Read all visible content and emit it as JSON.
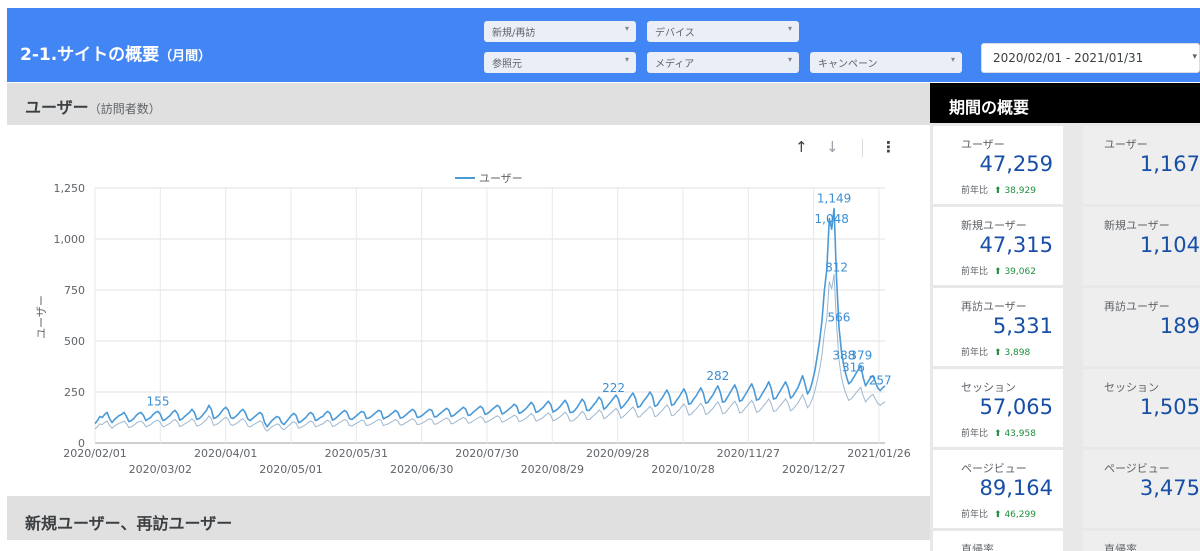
{
  "header": {
    "title": "2-1.サイトの概要",
    "title_suffix": "（月間）",
    "filters_row1": [
      {
        "label": "新規/再訪"
      },
      {
        "label": "デバイス"
      }
    ],
    "filters_row2": [
      {
        "label": "参照元"
      },
      {
        "label": "メディア"
      },
      {
        "label": "キャンペーン"
      }
    ],
    "date_range": "2020/02/01 - 2021/01/31"
  },
  "section1": {
    "title": "ユーザー",
    "subtitle": "（訪問者数）"
  },
  "section2": {
    "title": "新規ユーザー、再訪ユーザー"
  },
  "toolbar": {
    "up": "↑",
    "down": "↓",
    "more": "⋮"
  },
  "summary": {
    "title": "期間の概要",
    "yoy_label": "前年比",
    "cards_left": [
      {
        "label": "ユーザー",
        "value": "47,259",
        "yoy": "38,929"
      },
      {
        "label": "新規ユーザー",
        "value": "47,315",
        "yoy": "39,062"
      },
      {
        "label": "再訪ユーザー",
        "value": "5,331",
        "yoy": "3,898"
      },
      {
        "label": "セッション",
        "value": "57,065",
        "yoy": "43,958"
      },
      {
        "label": "ページビュー",
        "value": "89,164",
        "yoy": "46,299"
      },
      {
        "label": "直帰率"
      }
    ],
    "cards_right": [
      {
        "label": "ユーザー",
        "value": "1,167"
      },
      {
        "label": "新規ユーザー",
        "value": "1,104"
      },
      {
        "label": "再訪ユーザー",
        "value": "189"
      },
      {
        "label": "セッション",
        "value": "1,505"
      },
      {
        "label": "ページビュー",
        "value": "3,475"
      },
      {
        "label": "直帰率"
      }
    ]
  },
  "colors": {
    "header": "#4285f4",
    "series": "#4a9ad8",
    "positive": "#1e8e3e"
  },
  "chart_data": {
    "type": "line",
    "ylabel": "ユーザー",
    "ylim": [
      0,
      1250
    ],
    "yticks": [
      "0",
      "250",
      "500",
      "750",
      "1,000",
      "1,250"
    ],
    "xticks_row1": [
      "2020/02/01",
      "2020/04/01",
      "2020/05/31",
      "2020/07/30",
      "2020/09/28",
      "2020/11/27",
      "2021/01/26"
    ],
    "xticks_row2": [
      "2020/03/02",
      "2020/05/01",
      "2020/06/30",
      "2020/08/29",
      "2020/10/28",
      "2020/12/27"
    ],
    "legend_position": "top",
    "grid": true,
    "series": [
      {
        "name": "ユーザー",
        "x_start": "2020/02/01",
        "x_end": "2021/01/31",
        "values": [
          95,
          110,
          130,
          125,
          140,
          150,
          120,
          100,
          115,
          125,
          135,
          140,
          150,
          130,
          105,
          110,
          120,
          135,
          145,
          150,
          135,
          110,
          118,
          125,
          140,
          150,
          155,
          140,
          110,
          115,
          125,
          135,
          150,
          160,
          145,
          112,
          118,
          130,
          140,
          150,
          165,
          150,
          115,
          120,
          130,
          145,
          160,
          185,
          165,
          120,
          125,
          135,
          150,
          165,
          175,
          160,
          125,
          120,
          130,
          140,
          155,
          165,
          150,
          118,
          110,
          120,
          130,
          140,
          150,
          140,
          100,
          80,
          95,
          110,
          120,
          130,
          125,
          100,
          90,
          105,
          120,
          135,
          145,
          135,
          100,
          105,
          115,
          125,
          140,
          150,
          140,
          110,
          115,
          125,
          130,
          145,
          155,
          145,
          112,
          118,
          128,
          140,
          150,
          160,
          150,
          120,
          115,
          125,
          135,
          145,
          155,
          150,
          120,
          122,
          130,
          140,
          150,
          160,
          155,
          118,
          125,
          130,
          140,
          150,
          160,
          150,
          122,
          125,
          135,
          145,
          155,
          165,
          155,
          125,
          128,
          135,
          145,
          155,
          165,
          160,
          128,
          130,
          140,
          150,
          160,
          170,
          162,
          130,
          135,
          145,
          155,
          165,
          175,
          165,
          135,
          138,
          150,
          160,
          170,
          180,
          170,
          140,
          145,
          155,
          165,
          175,
          185,
          175,
          142,
          148,
          158,
          168,
          178,
          190,
          180,
          145,
          150,
          160,
          170,
          185,
          200,
          185,
          150,
          155,
          165,
          175,
          190,
          205,
          190,
          152,
          158,
          168,
          180,
          195,
          210,
          190,
          150,
          150,
          160,
          175,
          195,
          215,
          200,
          160,
          160,
          175,
          190,
          205,
          225,
          210,
          165,
          175,
          190,
          205,
          220,
          235,
          215,
          170,
          180,
          195,
          210,
          230,
          245,
          220,
          175,
          180,
          200,
          215,
          230,
          250,
          230,
          180,
          185,
          205,
          220,
          240,
          260,
          235,
          185,
          190,
          210,
          225,
          245,
          265,
          240,
          190,
          195,
          215,
          230,
          250,
          270,
          245,
          195,
          200,
          220,
          235,
          260,
          280,
          250,
          200,
          205,
          225,
          245,
          265,
          285,
          255,
          205,
          210,
          230,
          250,
          270,
          290,
          260,
          210,
          215,
          235,
          255,
          275,
          300,
          270,
          215,
          220,
          240,
          260,
          280,
          300,
          270,
          220,
          230,
          250,
          270,
          300,
          330,
          290,
          240,
          260,
          300,
          350,
          420,
          500,
          600,
          750,
          850,
          1100,
          1048,
          1149,
          812,
          566,
          450,
          380,
          330,
          290,
          300,
          320,
          340,
          360,
          379,
          320,
          280,
          300,
          320,
          330,
          300,
          270,
          257,
          270,
          280
        ]
      }
    ],
    "annotations": [
      "1,048",
      "1,149",
      "812",
      "566",
      "388",
      "379",
      "316",
      "282",
      "257",
      "222",
      "155"
    ]
  }
}
